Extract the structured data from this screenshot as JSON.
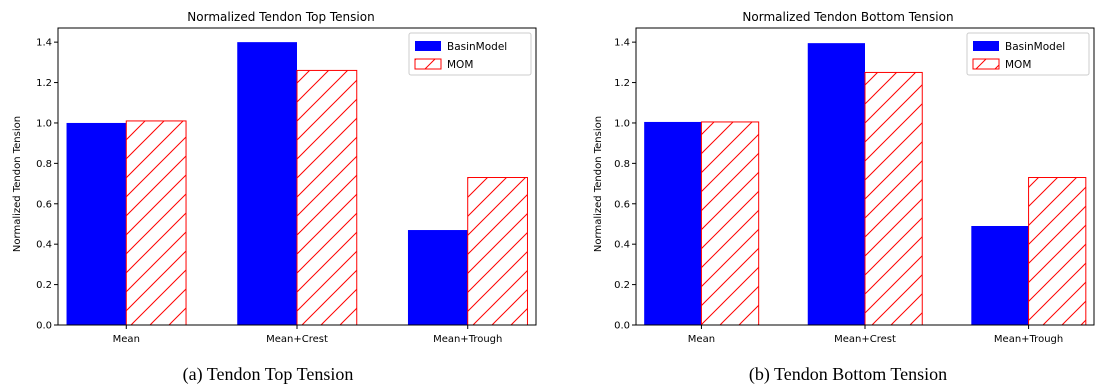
{
  "chart_data": [
    {
      "type": "bar",
      "title": "Normalized Tendon Top Tension",
      "caption": "(a) Tendon Top Tension",
      "xlabel": "",
      "ylabel": "Normalized Tendon Tension",
      "categories": [
        "Mean",
        "Mean+Crest",
        "Mean+Trough"
      ],
      "ylim": [
        0,
        1.47
      ],
      "yticks": [
        "0.0",
        "0.2",
        "0.4",
        "0.6",
        "0.8",
        "1.0",
        "1.2",
        "1.4"
      ],
      "legend_position": "top-right",
      "series": [
        {
          "name": "BasinModel",
          "values": [
            1.0,
            1.4,
            0.47
          ],
          "color": "#0000ff",
          "style": "solid"
        },
        {
          "name": "MOM",
          "values": [
            1.01,
            1.26,
            0.73
          ],
          "color": "#ff0000",
          "style": "hatched"
        }
      ]
    },
    {
      "type": "bar",
      "title": "Normalized Tendon Bottom Tension",
      "caption": "(b) Tendon Bottom Tension",
      "xlabel": "",
      "ylabel": "Normalized Tendon Tension",
      "categories": [
        "Mean",
        "Mean+Crest",
        "Mean+Trough"
      ],
      "ylim": [
        0,
        1.47
      ],
      "yticks": [
        "0.0",
        "0.2",
        "0.4",
        "0.6",
        "0.8",
        "1.0",
        "1.2",
        "1.4"
      ],
      "legend_position": "top-right",
      "series": [
        {
          "name": "BasinModel",
          "values": [
            1.005,
            1.395,
            0.49
          ],
          "color": "#0000ff",
          "style": "solid"
        },
        {
          "name": "MOM",
          "values": [
            1.005,
            1.25,
            0.73
          ],
          "color": "#ff0000",
          "style": "hatched"
        }
      ]
    }
  ]
}
